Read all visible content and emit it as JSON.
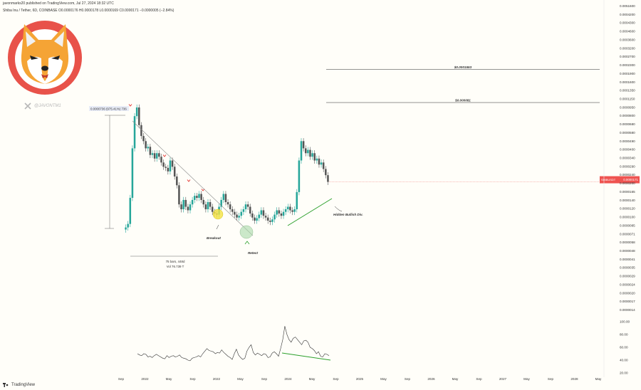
{
  "header": {
    "published_line": "javonmarks20 published on TradingView.com, Jul 27, 2024 18:32 UTC",
    "symbol_line": "Shiba Inu / Tether, 6D, COINBASE  O0.0000176  H0.0000178  L0.0000169  C0.0000171  −0.0000005 (−2.84%)"
  },
  "social": {
    "handle": "@JAVONTM1",
    "icon": "x-logo-icon"
  },
  "logo": {
    "name": "shiba-inu-logo",
    "ring_color": "#e8524a",
    "fur_color": "#f5a435"
  },
  "brand": {
    "label": "TradingView",
    "icon": "tradingview-logo-icon"
  },
  "colors": {
    "up": "#26a69a",
    "down": "#555555",
    "price_tag": "#ef5350",
    "rsi": "#333333",
    "trend": "#2ca02c",
    "circle_yellow": "#f5e342",
    "circle_green": "#a8d8a8"
  },
  "chart_data": [
    {
      "type": "candlestick",
      "price_axis_labels": [
        "0.0051600",
        "0.0004200",
        "0.0004300",
        "0.0004600",
        "0.0003600",
        "0.0003200",
        "0.0002700",
        "0.0002300",
        "0.0001900",
        "0.0001600",
        "0.0001350",
        "0.0001150",
        "0.0000950",
        "0.0000800",
        "0.0000680",
        "0.0000580",
        "0.0000490",
        "0.0000400",
        "0.0000340",
        "0.0000290",
        "0.0000240",
        "0.0000200",
        "0.0000165",
        "0.0000140",
        "0.0000120",
        "0.0000100",
        "0.0000085",
        "0.0000071",
        "0.0000058",
        "0.0000048",
        "0.0000041",
        "0.0000035",
        "0.0000029",
        "0.0000024",
        "0.0000020",
        "0.0000017",
        "0.0000014"
      ],
      "current_price_tag": "0.0000171",
      "current_price_sub": "SHIBUSDT",
      "time_labels": [
        "Sep",
        "2022",
        "May",
        "Sep",
        "2022",
        "May",
        "Sep",
        "2024",
        "May",
        "Sep",
        "2025",
        "May",
        "Sep",
        "2026",
        "May",
        "Sep",
        "2027",
        "May",
        "Sep",
        "2028",
        "May"
      ],
      "targets": [
        {
          "label": "$0.0001553",
          "price": 0.0001553
        },
        {
          "label": "$0.000081",
          "price": 8.1e-05
        }
      ],
      "annotations": {
        "range_label": "0.0000736 (975.41%) 736",
        "measure_bars": "75 bars, 448d",
        "measure_vol": "Vol 76.739 T",
        "breakout": "Breakout",
        "retest": "Retest",
        "hidden_div": "Hidden Bullish Div."
      },
      "series_close": [
        7e-06,
        7.5e-06,
        1.25e-05,
        3.3e-05,
        6.2e-05,
        7.35e-05,
        5.2e-05,
        4.2e-05,
        3.8e-05,
        3.3e-05,
        3.4e-05,
        2.9e-05,
        3e-05,
        2.7e-05,
        3e-05,
        2.8e-05,
        2.5e-05,
        2.3e-05,
        2.25e-05,
        2.1e-05,
        2.6e-05,
        2.3e-05,
        1.9e-05,
        1.6e-05,
        1.1e-05,
        1e-05,
        1.2e-05,
        1.05e-05,
        9.8e-06,
        1.1e-05,
        1.2e-05,
        1.3e-05,
        1.25e-05,
        1.35e-05,
        1.2e-05,
        1.1e-05,
        1e-05,
        1.15e-05,
        1.05e-05,
        9.5e-06,
        9.2e-06,
        9e-06,
        1.05e-05,
        1.2e-05,
        1.35e-05,
        1.15e-05,
        1.1e-05,
        1e-05,
        9.5e-06,
        9e-06,
        8.5e-06,
        8.8e-06,
        9.5e-06,
        1e-05,
        1.1e-05,
        1.05e-05,
        9.2e-06,
        8.5e-06,
        8e-06,
        8.4e-06,
        9e-06,
        9.8e-06,
        8.8e-06,
        8.5e-06,
        8e-06,
        7.8e-06,
        8.2e-06,
        9e-06,
        9.8e-06,
        9.2e-06,
        8.8e-06,
        9.5e-06,
        1e-05,
        1.05e-05,
        9.8e-06,
        9.5e-06,
        1e-05,
        1.4e-05,
        2.6e-05,
        3.8e-05,
        3.3e-05,
        3e-05,
        3.2e-05,
        2.8e-05,
        3e-05,
        2.6e-05,
        2.7e-05,
        2.4e-05,
        2.5e-05,
        2.2e-05,
        1.95e-05,
        1.71e-05
      ]
    },
    {
      "type": "line",
      "name": "RSI",
      "y_axis_labels": [
        "100.00",
        "80.00",
        "60.00",
        "40.00",
        "20.00"
      ],
      "ylim": [
        20,
        100
      ],
      "values": [
        50,
        48,
        47,
        50,
        49,
        45,
        46,
        44,
        47,
        49,
        47,
        45,
        43,
        42,
        47,
        44,
        46,
        47,
        45,
        46,
        48,
        44,
        43,
        42,
        40,
        39,
        43,
        44,
        45,
        47,
        45,
        50,
        54,
        58,
        55,
        54,
        53,
        50,
        52,
        51,
        56,
        52,
        49,
        46,
        44,
        41,
        50,
        57,
        48,
        44,
        41,
        43,
        54,
        60,
        64,
        52,
        48,
        51,
        49,
        47,
        50,
        49,
        44,
        45,
        51,
        53,
        50,
        46,
        58,
        72,
        93,
        80,
        72,
        68,
        74,
        76,
        72,
        68,
        64,
        70,
        71,
        68,
        60,
        58,
        55,
        50,
        53,
        46,
        45,
        50,
        49,
        47
      ]
    }
  ]
}
